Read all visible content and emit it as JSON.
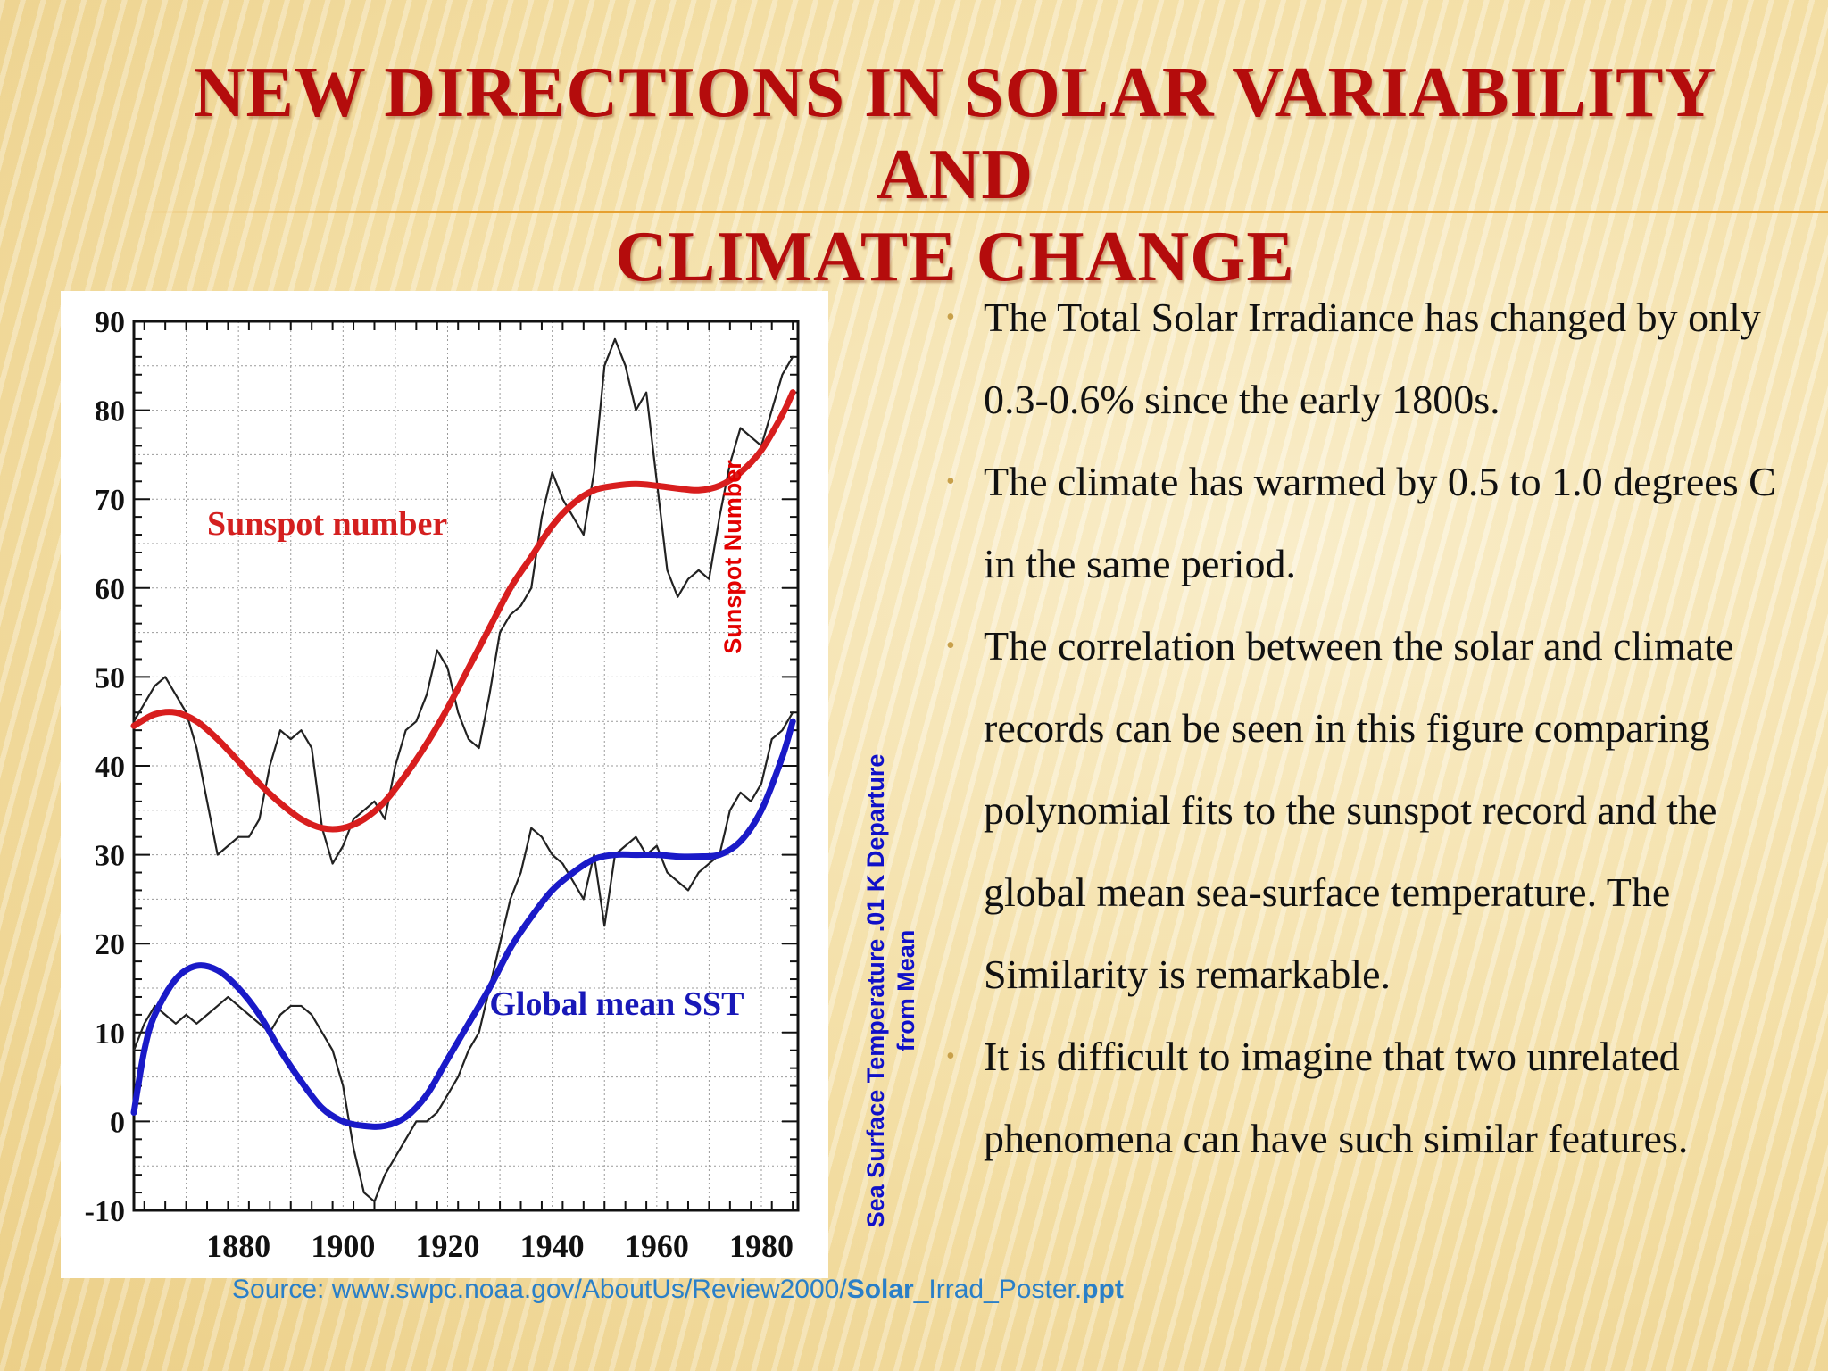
{
  "slide": {
    "title_line1": "NEW DIRECTIONS IN SOLAR VARIABILITY AND",
    "title_line2": "CLIMATE CHANGE",
    "title_color": "#b40c0c"
  },
  "bullets": [
    "The Total Solar Irradiance has changed by only 0.3-0.6% since the early 1800s.",
    "The climate has warmed by 0.5 to 1.0 degrees C in the same period.",
    "The correlation between the solar and climate records can be seen in this figure comparing polynomial fits to the sunspot record and the global mean sea-surface temperature. The Similarity is remarkable.",
    "It is difficult to imagine that two unrelated phenomena can have such similar features."
  ],
  "side_labels": {
    "sunspot": "Sunspot Number",
    "sst_line1": "Sea Surface Temperature .01 K Departure",
    "sst_line2": "from Mean"
  },
  "source": {
    "prefix": "Source: www.swpc.noaa.gov/AboutUs/Review2000/",
    "bold1": "Solar",
    "middle": "_Irrad_Poster.",
    "bold2": "ppt"
  },
  "chart_data": {
    "type": "line",
    "xlim": [
      1860,
      1987
    ],
    "ylim": [
      -10,
      90
    ],
    "xticks": [
      1880,
      1900,
      1920,
      1940,
      1960,
      1980
    ],
    "yticks": [
      -10,
      0,
      10,
      20,
      30,
      40,
      50,
      60,
      70,
      80,
      90
    ],
    "grid": true,
    "annotations": [
      {
        "text": "Sunspot number",
        "x": 1874,
        "y": 66,
        "color": "#d42020"
      },
      {
        "text": "Global mean SST",
        "x": 1928,
        "y": 12,
        "color": "#1818b8"
      }
    ],
    "series": [
      {
        "name": "Sunspot number",
        "role": "fit",
        "color": "#d81e1e",
        "x": [
          1860,
          1864,
          1868,
          1872,
          1876,
          1880,
          1884,
          1888,
          1892,
          1896,
          1900,
          1904,
          1908,
          1912,
          1916,
          1920,
          1924,
          1928,
          1932,
          1936,
          1940,
          1944,
          1948,
          1952,
          1956,
          1960,
          1964,
          1968,
          1972,
          1976,
          1980,
          1984,
          1986
        ],
        "y": [
          44.5,
          45.8,
          46,
          45,
          43,
          40.5,
          38,
          35.8,
          34,
          33,
          33,
          34,
          36,
          39,
          42.5,
          46.5,
          51,
          55.5,
          60,
          63.5,
          67,
          69.5,
          71,
          71.5,
          71.7,
          71.5,
          71.2,
          71,
          71.5,
          73,
          75.5,
          79.5,
          82
        ]
      },
      {
        "name": "Sunspot number",
        "role": "raw",
        "color": "#222222",
        "x": [
          1860,
          1862,
          1864,
          1866,
          1868,
          1870,
          1872,
          1874,
          1876,
          1878,
          1880,
          1882,
          1884,
          1886,
          1888,
          1890,
          1892,
          1894,
          1896,
          1898,
          1900,
          1902,
          1904,
          1906,
          1908,
          1910,
          1912,
          1914,
          1916,
          1918,
          1920,
          1922,
          1924,
          1926,
          1928,
          1930,
          1932,
          1934,
          1936,
          1938,
          1940,
          1942,
          1944,
          1946,
          1948,
          1950,
          1952,
          1954,
          1956,
          1958,
          1960,
          1962,
          1964,
          1966,
          1968,
          1970,
          1972,
          1974,
          1976,
          1978,
          1980,
          1982,
          1984,
          1986
        ],
        "y": [
          45,
          47,
          49,
          50,
          48,
          46,
          42,
          36,
          30,
          31,
          32,
          32,
          34,
          40,
          44,
          43,
          44,
          42,
          33,
          29,
          31,
          34,
          35,
          36,
          34,
          40,
          44,
          45,
          48,
          53,
          51,
          46,
          43,
          42,
          48,
          55,
          57,
          58,
          60,
          68,
          73,
          70,
          68,
          66,
          73,
          85,
          88,
          85,
          80,
          82,
          72,
          62,
          59,
          61,
          62,
          61,
          68,
          74,
          78,
          77,
          76,
          80,
          84,
          86
        ]
      },
      {
        "name": "Global mean SST",
        "role": "fit",
        "color": "#1a1ac8",
        "x": [
          1860,
          1862,
          1864,
          1868,
          1872,
          1876,
          1880,
          1884,
          1888,
          1892,
          1896,
          1900,
          1904,
          1908,
          1912,
          1916,
          1920,
          1924,
          1928,
          1932,
          1936,
          1940,
          1944,
          1948,
          1952,
          1956,
          1960,
          1964,
          1968,
          1972,
          1976,
          1980,
          1984,
          1986
        ],
        "y": [
          1,
          8,
          12,
          16,
          17.5,
          17,
          15,
          12,
          8,
          4.5,
          1.5,
          0,
          -0.5,
          -0.5,
          0.5,
          3,
          7,
          11,
          15,
          19.5,
          23,
          26,
          28,
          29.5,
          30,
          30,
          30,
          29.8,
          29.8,
          30,
          31.5,
          35,
          41,
          45
        ]
      },
      {
        "name": "Global mean SST",
        "role": "raw",
        "color": "#222222",
        "x": [
          1860,
          1862,
          1864,
          1866,
          1868,
          1870,
          1872,
          1874,
          1876,
          1878,
          1880,
          1882,
          1884,
          1886,
          1888,
          1890,
          1892,
          1894,
          1896,
          1898,
          1900,
          1902,
          1904,
          1906,
          1908,
          1910,
          1912,
          1914,
          1916,
          1918,
          1920,
          1922,
          1924,
          1926,
          1928,
          1930,
          1932,
          1934,
          1936,
          1938,
          1940,
          1942,
          1944,
          1946,
          1948,
          1950,
          1952,
          1954,
          1956,
          1958,
          1960,
          1962,
          1964,
          1966,
          1968,
          1970,
          1972,
          1974,
          1976,
          1978,
          1980,
          1982,
          1984,
          1986
        ],
        "y": [
          8,
          11,
          13,
          12,
          11,
          12,
          11,
          12,
          13,
          14,
          13,
          12,
          11,
          10,
          12,
          13,
          13,
          12,
          10,
          8,
          4,
          -3,
          -8,
          -9,
          -6,
          -4,
          -2,
          0,
          0,
          1,
          3,
          5,
          8,
          10,
          15,
          20,
          25,
          28,
          33,
          32,
          30,
          29,
          27,
          25,
          30,
          22,
          30,
          31,
          32,
          30,
          31,
          28,
          27,
          26,
          28,
          29,
          30,
          35,
          37,
          36,
          38,
          43,
          44,
          46
        ]
      }
    ]
  }
}
